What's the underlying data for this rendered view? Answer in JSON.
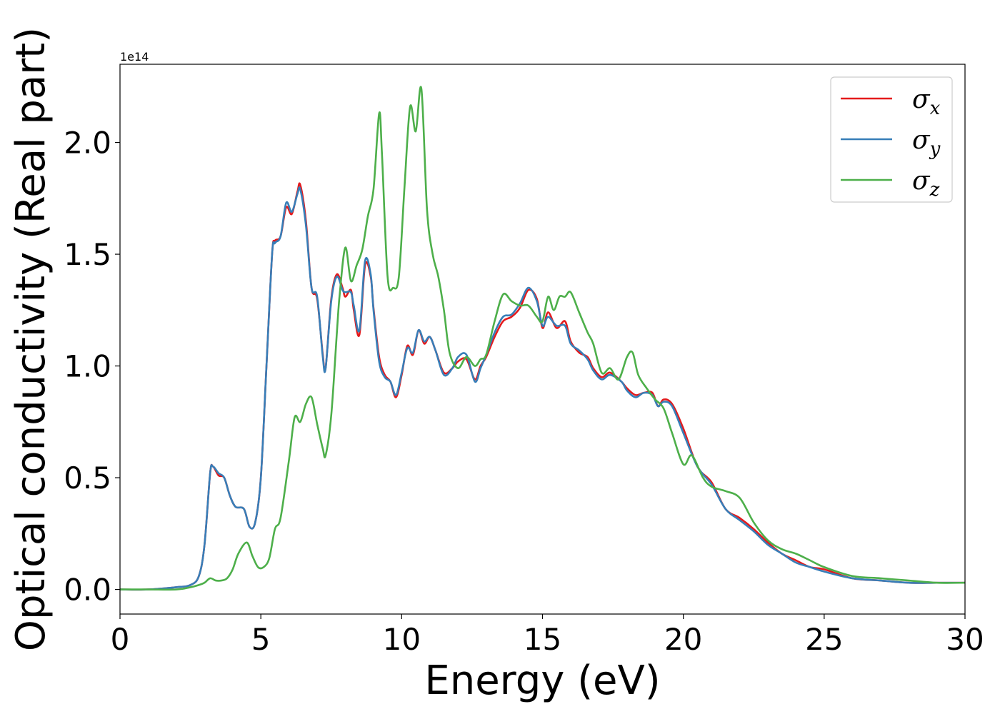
{
  "chart_data": {
    "type": "line",
    "title": "",
    "xlabel": "Energy (eV)",
    "ylabel": "Optical conductivity (Real part)",
    "y_offset_label": "1e14",
    "xlim": [
      0,
      30
    ],
    "ylim": [
      -0.11,
      2.35
    ],
    "x_ticks": [
      0,
      5,
      10,
      15,
      20,
      25,
      30
    ],
    "y_ticks": [
      0.0,
      0.5,
      1.0,
      1.5,
      2.0
    ],
    "x_tick_labels": [
      "0",
      "5",
      "10",
      "15",
      "20",
      "25",
      "30"
    ],
    "y_tick_labels": [
      "0.0",
      "0.5",
      "1.0",
      "1.5",
      "2.0"
    ],
    "grid": false,
    "legend_position": "top-right",
    "series": [
      {
        "name": "σx",
        "label_base": "σ",
        "label_sub": "x",
        "color": "#e41a1c",
        "x": [
          0,
          1,
          2,
          2.5,
          2.8,
          3.0,
          3.2,
          3.3,
          3.5,
          3.7,
          3.9,
          4.1,
          4.4,
          4.6,
          4.8,
          5.0,
          5.2,
          5.4,
          5.5,
          5.7,
          5.9,
          6.1,
          6.3,
          6.4,
          6.6,
          6.8,
          7.0,
          7.2,
          7.3,
          7.5,
          7.7,
          7.9,
          8.0,
          8.2,
          8.3,
          8.5,
          8.7,
          8.9,
          9.0,
          9.2,
          9.4,
          9.6,
          9.8,
          10.0,
          10.2,
          10.4,
          10.6,
          10.8,
          11.0,
          11.2,
          11.5,
          11.8,
          12.0,
          12.3,
          12.6,
          12.8,
          13.0,
          13.3,
          13.6,
          13.9,
          14.2,
          14.5,
          14.8,
          15.0,
          15.2,
          15.5,
          15.8,
          16.0,
          16.3,
          16.6,
          16.8,
          17.1,
          17.4,
          17.8,
          18.0,
          18.3,
          18.6,
          18.9,
          19.1,
          19.3,
          19.6,
          20.0,
          20.5,
          21.0,
          21.5,
          22.0,
          22.5,
          23.0,
          23.5,
          24.0,
          24.5,
          25.0,
          26.0,
          27.0,
          28.0,
          29.0,
          30.0
        ],
        "values": [
          0.0,
          0.0,
          0.01,
          0.02,
          0.06,
          0.2,
          0.52,
          0.55,
          0.51,
          0.5,
          0.42,
          0.37,
          0.36,
          0.28,
          0.3,
          0.5,
          1.0,
          1.5,
          1.56,
          1.58,
          1.71,
          1.68,
          1.78,
          1.81,
          1.65,
          1.35,
          1.3,
          1.05,
          0.99,
          1.3,
          1.41,
          1.35,
          1.31,
          1.34,
          1.25,
          1.14,
          1.45,
          1.4,
          1.26,
          1.04,
          0.96,
          0.93,
          0.86,
          0.96,
          1.09,
          1.05,
          1.16,
          1.1,
          1.13,
          1.07,
          0.97,
          0.99,
          1.02,
          1.03,
          0.94,
          1.0,
          1.04,
          1.13,
          1.2,
          1.22,
          1.26,
          1.34,
          1.3,
          1.17,
          1.24,
          1.17,
          1.2,
          1.11,
          1.06,
          1.04,
          0.99,
          0.95,
          0.97,
          0.93,
          0.9,
          0.87,
          0.88,
          0.88,
          0.82,
          0.85,
          0.83,
          0.72,
          0.55,
          0.48,
          0.36,
          0.32,
          0.27,
          0.21,
          0.16,
          0.13,
          0.1,
          0.09,
          0.05,
          0.04,
          0.03,
          0.03,
          0.03
        ]
      },
      {
        "name": "σy",
        "label_base": "σ",
        "label_sub": "y",
        "color": "#377eb8",
        "x": [
          0,
          1,
          2,
          2.5,
          2.8,
          3.0,
          3.2,
          3.3,
          3.5,
          3.7,
          3.9,
          4.1,
          4.4,
          4.6,
          4.8,
          5.0,
          5.2,
          5.4,
          5.5,
          5.7,
          5.9,
          6.1,
          6.3,
          6.4,
          6.6,
          6.8,
          7.0,
          7.2,
          7.3,
          7.5,
          7.7,
          7.9,
          8.0,
          8.2,
          8.3,
          8.5,
          8.7,
          8.9,
          9.0,
          9.2,
          9.4,
          9.6,
          9.8,
          10.0,
          10.2,
          10.4,
          10.6,
          10.8,
          11.0,
          11.2,
          11.5,
          11.8,
          12.0,
          12.3,
          12.6,
          12.8,
          13.0,
          13.3,
          13.6,
          13.9,
          14.2,
          14.5,
          14.8,
          15.0,
          15.2,
          15.5,
          15.8,
          16.0,
          16.3,
          16.6,
          16.8,
          17.1,
          17.4,
          17.8,
          18.0,
          18.3,
          18.6,
          18.9,
          19.1,
          19.3,
          19.6,
          20.0,
          20.5,
          21.0,
          21.5,
          22.0,
          22.5,
          23.0,
          23.5,
          24.0,
          24.5,
          25.0,
          26.0,
          27.0,
          28.0,
          29.0,
          30.0
        ],
        "values": [
          0.0,
          0.0,
          0.01,
          0.02,
          0.06,
          0.2,
          0.52,
          0.55,
          0.52,
          0.5,
          0.42,
          0.37,
          0.36,
          0.28,
          0.3,
          0.5,
          1.0,
          1.5,
          1.55,
          1.58,
          1.73,
          1.69,
          1.77,
          1.79,
          1.63,
          1.35,
          1.31,
          1.04,
          0.99,
          1.29,
          1.4,
          1.34,
          1.33,
          1.33,
          1.27,
          1.16,
          1.47,
          1.41,
          1.25,
          1.02,
          0.95,
          0.93,
          0.87,
          0.97,
          1.08,
          1.06,
          1.16,
          1.11,
          1.13,
          1.07,
          0.96,
          0.99,
          1.04,
          1.05,
          0.93,
          0.99,
          1.05,
          1.15,
          1.22,
          1.23,
          1.28,
          1.35,
          1.29,
          1.18,
          1.22,
          1.18,
          1.18,
          1.1,
          1.07,
          1.03,
          0.98,
          0.94,
          0.96,
          0.93,
          0.89,
          0.86,
          0.88,
          0.87,
          0.82,
          0.84,
          0.82,
          0.7,
          0.55,
          0.47,
          0.36,
          0.31,
          0.26,
          0.2,
          0.16,
          0.12,
          0.1,
          0.08,
          0.05,
          0.04,
          0.03,
          0.03,
          0.03
        ]
      },
      {
        "name": "σz",
        "label_base": "σ",
        "label_sub": "z",
        "color": "#4daf4a",
        "x": [
          0,
          1,
          2,
          2.5,
          2.8,
          3.0,
          3.2,
          3.4,
          3.6,
          3.8,
          4.0,
          4.2,
          4.5,
          4.7,
          4.9,
          5.1,
          5.3,
          5.5,
          5.7,
          6.0,
          6.2,
          6.4,
          6.6,
          6.8,
          7.0,
          7.2,
          7.3,
          7.5,
          7.7,
          7.8,
          8.0,
          8.2,
          8.4,
          8.6,
          8.8,
          9.0,
          9.2,
          9.3,
          9.5,
          9.7,
          9.9,
          10.1,
          10.3,
          10.5,
          10.7,
          10.9,
          11.1,
          11.3,
          11.5,
          11.7,
          12.0,
          12.3,
          12.6,
          12.8,
          13.0,
          13.3,
          13.6,
          13.9,
          14.2,
          14.5,
          14.8,
          15.0,
          15.2,
          15.4,
          15.6,
          15.8,
          16.0,
          16.3,
          16.6,
          16.8,
          17.1,
          17.4,
          17.7,
          18.0,
          18.2,
          18.4,
          18.7,
          19.0,
          19.3,
          19.6,
          20.0,
          20.3,
          20.7,
          21.0,
          21.5,
          22.0,
          22.5,
          23.0,
          23.5,
          24.0,
          24.5,
          25.0,
          26.0,
          27.0,
          28.0,
          29.0,
          30.0
        ],
        "values": [
          0.0,
          0.0,
          0.0,
          0.01,
          0.02,
          0.03,
          0.05,
          0.04,
          0.04,
          0.05,
          0.09,
          0.16,
          0.21,
          0.15,
          0.1,
          0.1,
          0.14,
          0.27,
          0.32,
          0.58,
          0.77,
          0.75,
          0.83,
          0.86,
          0.74,
          0.63,
          0.6,
          0.78,
          1.15,
          1.32,
          1.53,
          1.38,
          1.45,
          1.52,
          1.67,
          1.79,
          2.13,
          1.95,
          1.4,
          1.35,
          1.4,
          1.8,
          2.16,
          2.05,
          2.24,
          1.7,
          1.5,
          1.4,
          1.25,
          1.06,
          0.99,
          1.04,
          1.0,
          1.03,
          1.05,
          1.2,
          1.32,
          1.29,
          1.27,
          1.27,
          1.22,
          1.2,
          1.31,
          1.25,
          1.31,
          1.31,
          1.33,
          1.24,
          1.15,
          1.1,
          0.97,
          0.99,
          0.94,
          1.04,
          1.06,
          0.96,
          0.9,
          0.85,
          0.81,
          0.7,
          0.56,
          0.6,
          0.5,
          0.46,
          0.44,
          0.41,
          0.3,
          0.22,
          0.18,
          0.16,
          0.13,
          0.1,
          0.06,
          0.05,
          0.04,
          0.03,
          0.03
        ]
      }
    ]
  }
}
